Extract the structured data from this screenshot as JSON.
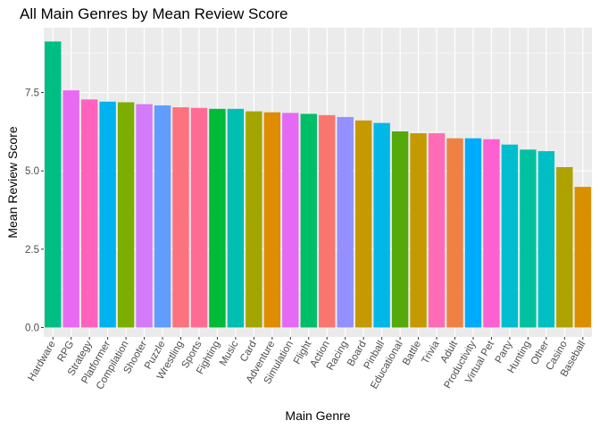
{
  "chart_data": {
    "type": "bar",
    "title": "All Main Genres by Mean Review Score",
    "xlabel": "Main Genre",
    "ylabel": "Mean Review Score",
    "categories": [
      "Hardware",
      "RPG",
      "Strategy",
      "Platformer",
      "Compilation",
      "Shooter",
      "Puzzle",
      "Wrestling",
      "Sports",
      "Fighting",
      "Music",
      "Card",
      "Adventure",
      "Simulation",
      "Flight",
      "Action",
      "Racing",
      "Board",
      "Pinball",
      "Educational",
      "Battle",
      "Trivia",
      "Adult",
      "Productivity",
      "Virtual Pet",
      "Party",
      "Hunting",
      "Other",
      "Casino",
      "Baseball"
    ],
    "values": [
      9.13,
      7.57,
      7.28,
      7.21,
      7.19,
      7.13,
      7.09,
      7.03,
      7.01,
      6.98,
      6.98,
      6.9,
      6.87,
      6.85,
      6.82,
      6.78,
      6.72,
      6.61,
      6.53,
      6.26,
      6.2,
      6.2,
      6.04,
      6.04,
      6.01,
      5.84,
      5.68,
      5.63,
      5.12,
      4.49
    ],
    "colors": [
      "#00BD84",
      "#E96AF2",
      "#FF62BC",
      "#00B2EF",
      "#7CAE00",
      "#D37BF8",
      "#619CFF",
      "#FC727F",
      "#FF6B95",
      "#00BA38",
      "#00BFB0",
      "#A3A500",
      "#DF8C00",
      "#E46AF6",
      "#00BE68",
      "#F8766D",
      "#9590FF",
      "#C49A00",
      "#00B8E7",
      "#55A90B",
      "#C49A00",
      "#FF6BB5",
      "#EF8144",
      "#00ABFD",
      "#FD61D1",
      "#00BDD0",
      "#00C19F",
      "#00BFC4",
      "#AEA200",
      "#DA8F00"
    ],
    "yticks": [
      0.0,
      2.5,
      5.0,
      7.5
    ],
    "ytick_labels": [
      "0.0",
      "2.5",
      "5.0",
      "7.5"
    ],
    "ylim": [
      -0.3,
      9.57
    ],
    "grid": true,
    "panel_background": "#EBEBEB",
    "legend": "none"
  }
}
